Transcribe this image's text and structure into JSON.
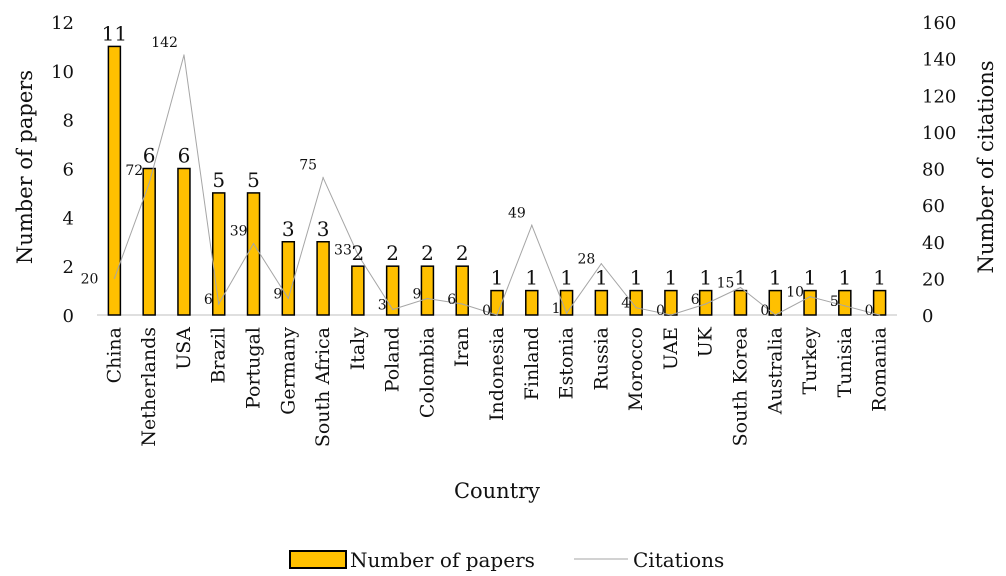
{
  "chart_data": {
    "type": "bar",
    "xlabel": "Country",
    "ylabel": "Number of papers",
    "y2label": "Number of citations",
    "ylim": [
      0,
      12
    ],
    "y2lim": [
      0,
      160
    ],
    "yticks": [
      0,
      2,
      4,
      6,
      8,
      10,
      12
    ],
    "y2ticks": [
      0,
      20,
      40,
      60,
      80,
      100,
      120,
      140,
      160
    ],
    "categories": [
      "China",
      "Netherlands",
      "USA",
      "Brazil",
      "Portugal",
      "Germany",
      "South Africa",
      "Italy",
      "Poland",
      "Colombia",
      "Iran",
      "Indonesia",
      "Finland",
      "Estonia",
      "Russia",
      "Morocco",
      "UAE",
      "UK",
      "South Korea",
      "Australia",
      "Turkey",
      "Tunisia",
      "Romania"
    ],
    "series": [
      {
        "name": "Number of papers",
        "type": "bar",
        "axis": "left",
        "color": "#FFC000",
        "values": [
          11,
          6,
          6,
          5,
          5,
          3,
          3,
          2,
          2,
          2,
          2,
          1,
          1,
          1,
          1,
          1,
          1,
          1,
          1,
          1,
          1,
          1,
          1
        ]
      },
      {
        "name": "Citations",
        "type": "line",
        "axis": "right",
        "color": "#a6a6a6",
        "values": [
          20,
          72,
          142,
          6,
          39,
          9,
          75,
          33,
          3,
          9,
          6,
          0,
          49,
          1,
          28,
          4,
          0,
          6,
          15,
          0,
          10,
          5,
          0
        ]
      }
    ],
    "legend": {
      "placement": "bottom",
      "items": [
        "Number of papers",
        "Citations"
      ]
    },
    "grid": false
  }
}
